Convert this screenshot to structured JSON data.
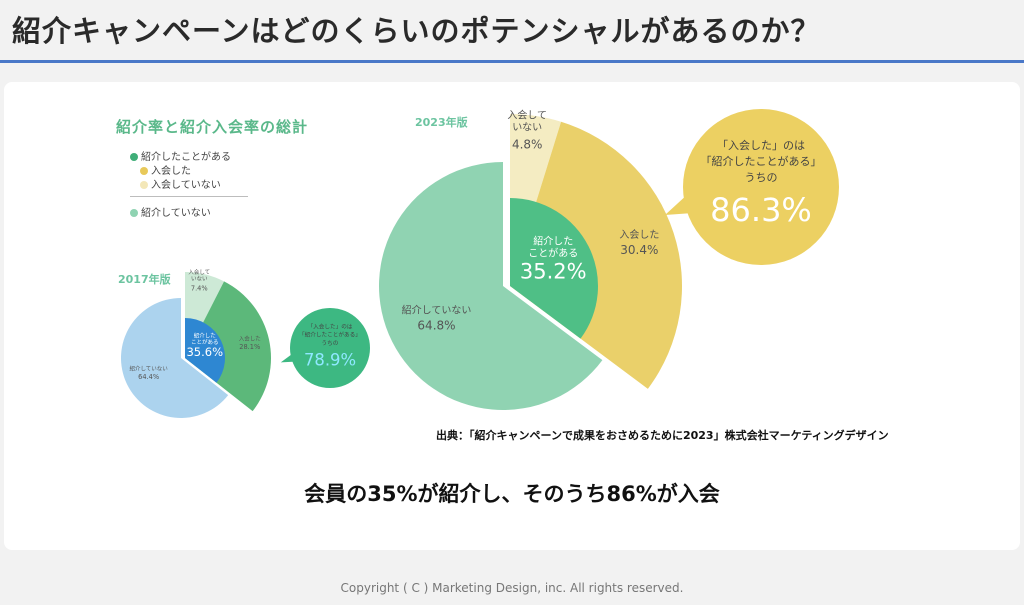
{
  "page": {
    "title": "紹介キャンペーンはどのくらいのポテンシャルがあるのか？",
    "source": "出典：「紹介キャンペーンで成果をおさめるために2023」株式会社マーケティングデザイン",
    "headline": "会員の35%が紹介し、そのうち86%が入会",
    "copyright": "Copyright ( C ) Marketing Design, inc. All rights reserved."
  },
  "legend": {
    "title": "紹介率と紹介入会率の総計",
    "items": [
      {
        "label": "紹介したことがある",
        "color": "#3fae78"
      },
      {
        "label": "入会した",
        "color": "#e8c95a"
      },
      {
        "label": "入会していない",
        "color": "#f3e7b8"
      },
      {
        "label": "紹介していない",
        "color": "#8fd3b2"
      }
    ]
  },
  "chart_data": [
    {
      "type": "pie",
      "edition": "2023年版",
      "inner": [
        {
          "label": "紹介したことがある",
          "value": 35.2,
          "value_text": "35.2%",
          "color": "#4fbf86"
        },
        {
          "label": "紹介していない",
          "value": 64.8,
          "value_text": "64.8%",
          "color": "#90d3b2"
        }
      ],
      "outer": [
        {
          "label": "入会した",
          "value": 30.4,
          "value_text": "30.4%",
          "color": "#ead06a"
        },
        {
          "label": "入会していない",
          "value": 4.8,
          "value_text": "4.8%",
          "color": "#f4ecc2"
        }
      ],
      "callout": {
        "line1": "「入会した」のは",
        "line2": "「紹介したことがある」",
        "line3": "うちの",
        "value": "86.3%",
        "color": "#ecd062",
        "value_color": "#ffffff"
      }
    },
    {
      "type": "pie",
      "edition": "2017年版",
      "inner": [
        {
          "label": "紹介したことがある",
          "value": 35.6,
          "value_text": "35.6%",
          "color": "#2e87d2"
        },
        {
          "label": "紹介していない",
          "value": 64.4,
          "value_text": "64.4%",
          "color": "#acd3ee"
        }
      ],
      "outer": [
        {
          "label": "入会した",
          "value": 28.1,
          "value_text": "28.1%",
          "color": "#5cb87a"
        },
        {
          "label": "入会していない",
          "value": 7.4,
          "value_text": "7.4%",
          "color": "#cde9d6"
        }
      ],
      "callout": {
        "line1": "「入会した」のは",
        "line2": "「紹介したことがある」",
        "line3": "うちの",
        "value": "78.9%",
        "color": "#3db882",
        "value_color": "#8fe8ff"
      }
    }
  ]
}
